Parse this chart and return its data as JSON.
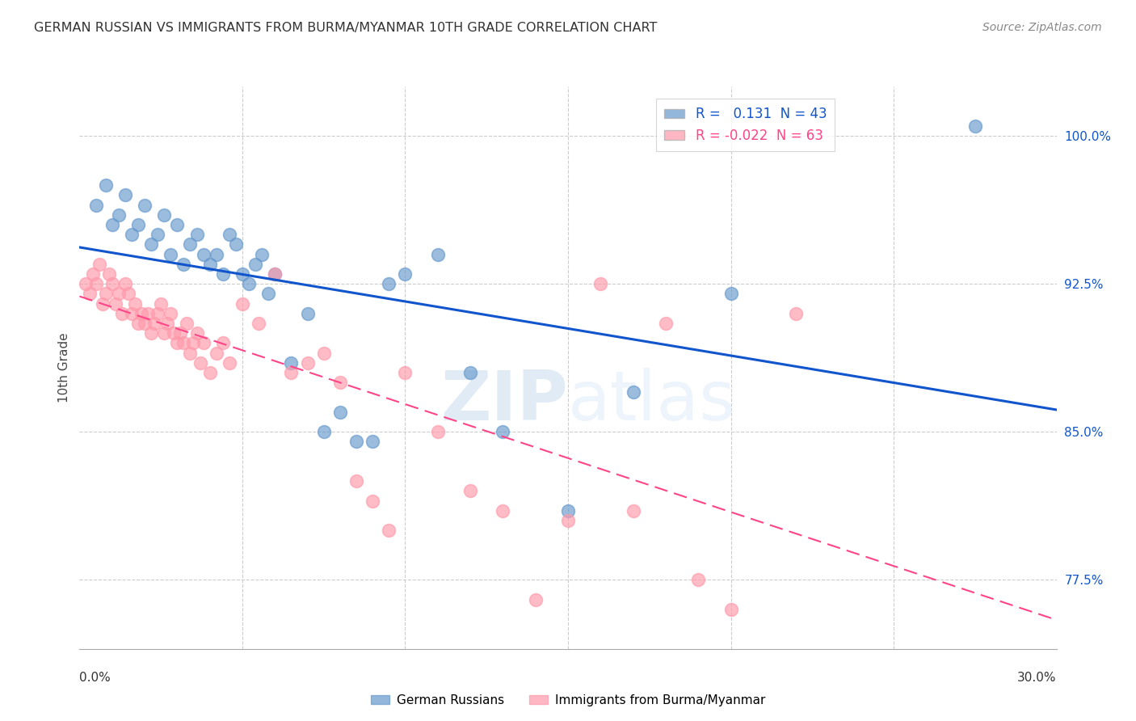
{
  "title": "GERMAN RUSSIAN VS IMMIGRANTS FROM BURMA/MYANMAR 10TH GRADE CORRELATION CHART",
  "source": "Source: ZipAtlas.com",
  "ylabel": "10th Grade",
  "ylabel_ticks": [
    77.5,
    85.0,
    92.5,
    100.0
  ],
  "ylabel_tick_labels": [
    "77.5%",
    "85.0%",
    "92.5%",
    "100.0%"
  ],
  "xmin": 0.0,
  "xmax": 30.0,
  "ymin": 74.0,
  "ymax": 102.5,
  "blue_R": 0.131,
  "blue_N": 43,
  "pink_R": -0.022,
  "pink_N": 63,
  "blue_color": "#6699CC",
  "pink_color": "#FF99AA",
  "blue_line_color": "#1155CC",
  "pink_line_color": "#FF4488",
  "legend_label_blue": "German Russians",
  "legend_label_pink": "Immigrants from Burma/Myanmar",
  "watermark_zip": "ZIP",
  "watermark_atlas": "atlas",
  "blue_scatter_x": [
    0.5,
    0.8,
    1.0,
    1.2,
    1.4,
    1.6,
    1.8,
    2.0,
    2.2,
    2.4,
    2.6,
    2.8,
    3.0,
    3.2,
    3.4,
    3.6,
    3.8,
    4.0,
    4.2,
    4.4,
    4.6,
    4.8,
    5.0,
    5.2,
    5.4,
    5.6,
    5.8,
    6.0,
    6.5,
    7.0,
    7.5,
    8.0,
    8.5,
    9.0,
    9.5,
    10.0,
    11.0,
    12.0,
    13.0,
    15.0,
    17.0,
    20.0,
    27.5
  ],
  "blue_scatter_y": [
    96.5,
    97.5,
    95.5,
    96.0,
    97.0,
    95.0,
    95.5,
    96.5,
    94.5,
    95.0,
    96.0,
    94.0,
    95.5,
    93.5,
    94.5,
    95.0,
    94.0,
    93.5,
    94.0,
    93.0,
    95.0,
    94.5,
    93.0,
    92.5,
    93.5,
    94.0,
    92.0,
    93.0,
    88.5,
    91.0,
    85.0,
    86.0,
    84.5,
    84.5,
    92.5,
    93.0,
    94.0,
    88.0,
    85.0,
    81.0,
    87.0,
    92.0,
    100.5
  ],
  "pink_scatter_x": [
    0.2,
    0.3,
    0.4,
    0.5,
    0.6,
    0.7,
    0.8,
    0.9,
    1.0,
    1.1,
    1.2,
    1.3,
    1.4,
    1.5,
    1.6,
    1.7,
    1.8,
    1.9,
    2.0,
    2.1,
    2.2,
    2.3,
    2.4,
    2.5,
    2.6,
    2.7,
    2.8,
    2.9,
    3.0,
    3.1,
    3.2,
    3.3,
    3.4,
    3.5,
    3.6,
    3.7,
    3.8,
    4.0,
    4.2,
    4.4,
    4.6,
    5.0,
    5.5,
    6.0,
    6.5,
    7.0,
    7.5,
    8.0,
    8.5,
    9.0,
    9.5,
    10.0,
    11.0,
    12.0,
    13.0,
    14.0,
    15.0,
    16.0,
    17.0,
    18.0,
    19.0,
    20.0,
    22.0
  ],
  "pink_scatter_y": [
    92.5,
    92.0,
    93.0,
    92.5,
    93.5,
    91.5,
    92.0,
    93.0,
    92.5,
    91.5,
    92.0,
    91.0,
    92.5,
    92.0,
    91.0,
    91.5,
    90.5,
    91.0,
    90.5,
    91.0,
    90.0,
    90.5,
    91.0,
    91.5,
    90.0,
    90.5,
    91.0,
    90.0,
    89.5,
    90.0,
    89.5,
    90.5,
    89.0,
    89.5,
    90.0,
    88.5,
    89.5,
    88.0,
    89.0,
    89.5,
    88.5,
    91.5,
    90.5,
    93.0,
    88.0,
    88.5,
    89.0,
    87.5,
    82.5,
    81.5,
    80.0,
    88.0,
    85.0,
    82.0,
    81.0,
    76.5,
    80.5,
    92.5,
    81.0,
    90.5,
    77.5,
    76.0,
    91.0
  ]
}
